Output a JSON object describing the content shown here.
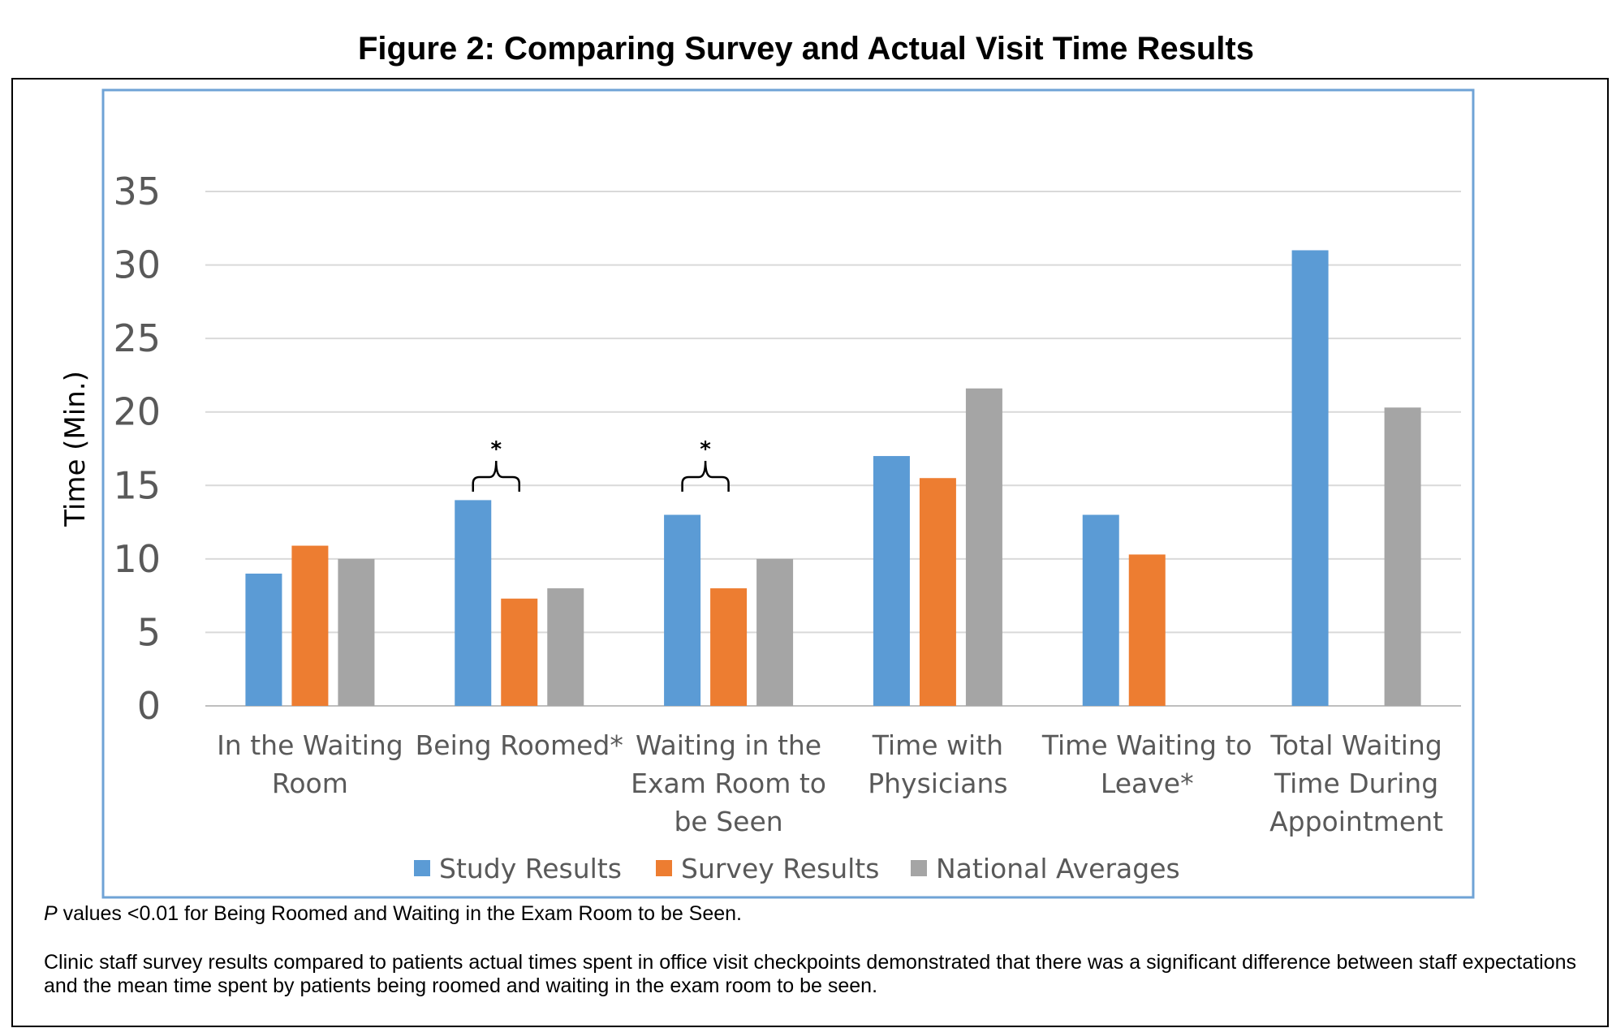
{
  "figure_title": "Figure 2: Comparing Survey and Actual Visit Time Results",
  "chart_data": {
    "type": "bar",
    "ylabel": "Time (Min.)",
    "ylim": [
      0,
      35
    ],
    "yticks": [
      0,
      5,
      10,
      15,
      20,
      25,
      30,
      35
    ],
    "grid": true,
    "legend_position": "bottom",
    "categories": [
      [
        "In the Waiting",
        "Room"
      ],
      [
        "Being Roomed*"
      ],
      [
        "Waiting in the",
        "Exam Room to",
        "be Seen"
      ],
      [
        "Time with",
        "Physicians"
      ],
      [
        "Time Waiting to",
        "Leave*"
      ],
      [
        "Total Waiting",
        "Time During",
        "Appointment"
      ]
    ],
    "series": [
      {
        "name": "Study Results",
        "color": "#5b9bd5",
        "values": [
          9,
          14,
          13,
          17,
          13,
          31
        ]
      },
      {
        "name": "Survey Results",
        "color": "#ed7d31",
        "values": [
          10.9,
          7.3,
          8,
          15.5,
          10.3,
          null
        ]
      },
      {
        "name": "National Averages",
        "color": "#a5a5a5",
        "values": [
          10,
          8,
          10,
          21.6,
          null,
          20.3
        ]
      }
    ],
    "annotations": [
      {
        "category_index": 1,
        "text": "*",
        "span": [
          0,
          1
        ]
      },
      {
        "category_index": 2,
        "text": "*",
        "span": [
          0,
          1
        ]
      }
    ]
  },
  "notes": {
    "p_value_prefix": "P",
    "p_value_text": " values <0.01 for Being Roomed and Waiting in the Exam Room to be Seen.",
    "caption": "Clinic staff survey results compared to patients actual times spent in office visit checkpoints demonstrated that there was a significant difference between staff expectations and the mean time spent by patients being roomed and waiting in the exam room to be seen."
  }
}
